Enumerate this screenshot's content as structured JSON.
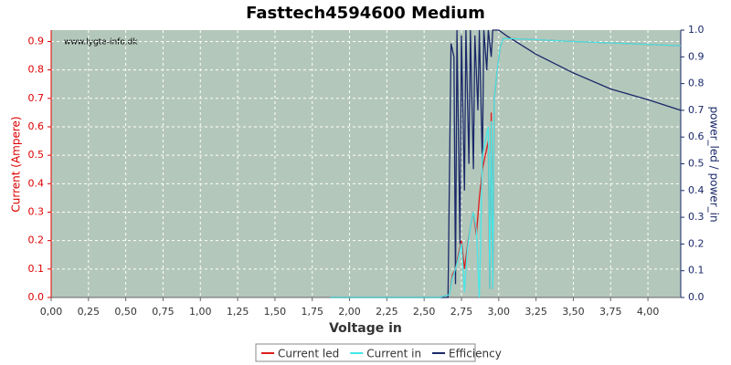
{
  "chart_data": {
    "type": "line",
    "title": "Fasttech4594600 Medium",
    "watermark": "www.lygte-info.dk",
    "x_label": "Voltage in",
    "y_label": "Current (Ampere)",
    "y2_label": "power_led / power_in",
    "grid": true,
    "xlim": [
      0,
      4.22
    ],
    "ylim": [
      0,
      0.94
    ],
    "y2lim": [
      0,
      1
    ],
    "xticks": [
      {
        "value": 0,
        "label": "0,00"
      },
      {
        "value": 0.25,
        "label": "0,25"
      },
      {
        "value": 0.5,
        "label": "0,50"
      },
      {
        "value": 0.75,
        "label": "0,75"
      },
      {
        "value": 1,
        "label": "1,00"
      },
      {
        "value": 1.25,
        "label": "1,25"
      },
      {
        "value": 1.5,
        "label": "1,50"
      },
      {
        "value": 1.75,
        "label": "1,75"
      },
      {
        "value": 2,
        "label": "2,00"
      },
      {
        "value": 2.25,
        "label": "2,25"
      },
      {
        "value": 2.5,
        "label": "2,50"
      },
      {
        "value": 2.75,
        "label": "2,75"
      },
      {
        "value": 3,
        "label": "3,00"
      },
      {
        "value": 3.25,
        "label": "3,25"
      },
      {
        "value": 3.5,
        "label": "3,50"
      },
      {
        "value": 3.75,
        "label": "3,75"
      },
      {
        "value": 4,
        "label": "4,00"
      }
    ],
    "yticks": [
      {
        "value": 0,
        "label": "0.0"
      },
      0.1,
      0.2,
      0.3,
      0.4,
      0.5,
      0.6,
      0.7,
      0.8,
      0.9
    ],
    "y2ticks": [
      {
        "value": 0,
        "label": "0.0"
      },
      0.1,
      0.2,
      0.3,
      0.4,
      0.5,
      0.6,
      0.7,
      0.8,
      0.9,
      {
        "value": 1,
        "label": "1.0"
      }
    ],
    "series": [
      {
        "name": "Current led",
        "color": "#dd1c1c",
        "x": [
          1.87,
          2.0,
          2.2,
          2.4,
          2.6,
          2.67,
          2.69,
          2.71,
          2.73,
          2.75,
          2.77,
          2.79,
          2.81,
          2.83,
          2.85,
          2.87,
          2.89,
          2.91,
          2.93,
          2.94,
          2.95,
          2.96,
          2.97,
          2.99,
          3.01,
          3.03,
          3.1,
          3.3,
          3.5,
          3.75,
          4.0,
          4.22
        ],
        "values": [
          0,
          0,
          0,
          0,
          0,
          0.01,
          0.08,
          0.1,
          0.15,
          0.2,
          0.1,
          0.18,
          0.25,
          0.3,
          0.22,
          0.35,
          0.45,
          0.5,
          0.55,
          0.03,
          0.65,
          0.03,
          0.7,
          0.8,
          0.88,
          0.91,
          0.91,
          0.905,
          0.9,
          0.895,
          0.89,
          0.885
        ]
      },
      {
        "name": "Current in",
        "color": "#44e8e8",
        "x": [
          1.87,
          2.0,
          2.2,
          2.4,
          2.6,
          2.67,
          2.69,
          2.71,
          2.73,
          2.75,
          2.77,
          2.79,
          2.81,
          2.83,
          2.85,
          2.87,
          2.89,
          2.91,
          2.93,
          2.94,
          2.95,
          2.96,
          2.97,
          2.99,
          3.01,
          3.03,
          3.1,
          3.3,
          3.5,
          3.75,
          4.0,
          4.22
        ],
        "values": [
          0,
          0,
          0,
          0,
          0,
          0.01,
          0.07,
          0.1,
          0.14,
          0.19,
          0.02,
          0.17,
          0.25,
          0.3,
          0.24,
          0.0,
          0.5,
          0.55,
          0.6,
          0.03,
          0.62,
          0.03,
          0.7,
          0.8,
          0.88,
          0.91,
          0.91,
          0.905,
          0.9,
          0.895,
          0.89,
          0.885
        ]
      },
      {
        "name": "Efficiency",
        "color": "#1a2868",
        "axis": "y2",
        "x": [
          1.87,
          2.66,
          2.68,
          2.7,
          2.71,
          2.72,
          2.74,
          2.75,
          2.77,
          2.78,
          2.8,
          2.81,
          2.83,
          2.84,
          2.86,
          2.87,
          2.89,
          2.9,
          2.92,
          2.93,
          2.95,
          2.96,
          2.98,
          3.0,
          3.05,
          3.25,
          3.5,
          3.75,
          4.0,
          4.22
        ],
        "values": [
          0,
          0,
          0.95,
          0.9,
          0.05,
          1.0,
          0.2,
          0.98,
          0.4,
          1.0,
          0.5,
          1.0,
          0.48,
          0.98,
          0.7,
          1.0,
          0.5,
          1.0,
          0.85,
          1.0,
          0.9,
          1.0,
          1.0,
          1.0,
          0.98,
          0.91,
          0.84,
          0.78,
          0.74,
          0.7
        ]
      }
    ]
  }
}
